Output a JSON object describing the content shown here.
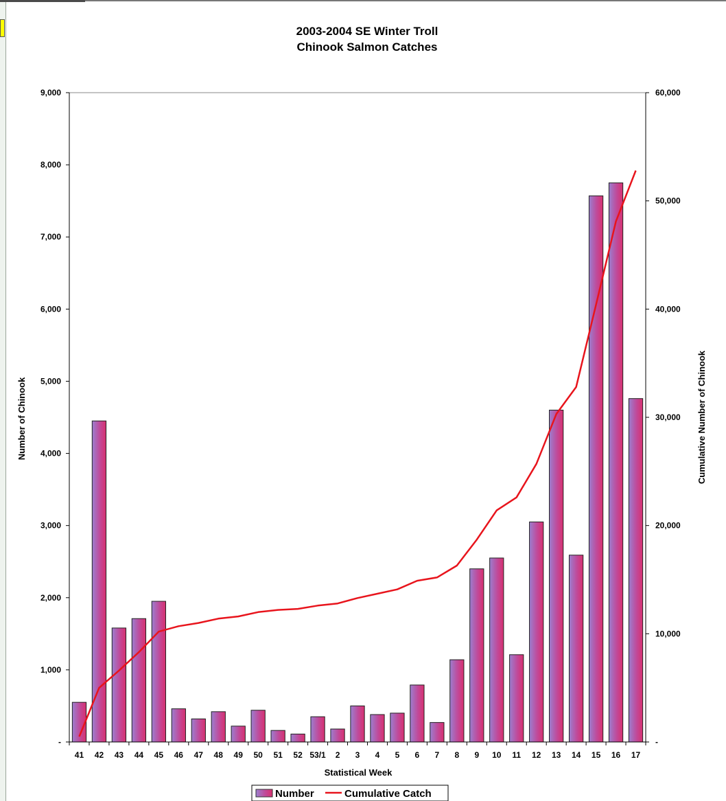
{
  "chart_data": {
    "type": "bar",
    "title": "2003-2004 SE Winter Troll",
    "subtitle": "Chinook Salmon Catches",
    "xlabel": "Statistical Week",
    "ylabel": "Number of Chinook",
    "y2label": "Cumulative Number of Chinook",
    "ylim": [
      0,
      9000
    ],
    "y2lim": [
      0,
      60000
    ],
    "y_ticks": [
      "-",
      "1,000",
      "2,000",
      "3,000",
      "4,000",
      "5,000",
      "6,000",
      "7,000",
      "8,000",
      "9,000"
    ],
    "y2_ticks": [
      "-",
      "10,000",
      "20,000",
      "30,000",
      "40,000",
      "50,000",
      "60,000"
    ],
    "categories": [
      "41",
      "42",
      "43",
      "44",
      "45",
      "46",
      "47",
      "48",
      "49",
      "50",
      "51",
      "52",
      "53/1",
      "2",
      "3",
      "4",
      "5",
      "6",
      "7",
      "8",
      "9",
      "10",
      "11",
      "12",
      "13",
      "14",
      "15",
      "16",
      "17"
    ],
    "series": [
      {
        "name": "Number",
        "kind": "bar",
        "color": "#b05aa8",
        "values": [
          550,
          4450,
          1580,
          1710,
          1950,
          460,
          320,
          420,
          220,
          440,
          160,
          110,
          350,
          180,
          500,
          380,
          400,
          790,
          270,
          1140,
          2400,
          2550,
          1210,
          3050,
          4600,
          2590,
          7570,
          7750,
          4760
        ]
      },
      {
        "name": "Cumulative Catch",
        "kind": "line",
        "color": "#e8141c",
        "values": [
          500,
          5000,
          6600,
          8300,
          10200,
          10700,
          11000,
          11400,
          11600,
          12000,
          12200,
          12300,
          12600,
          12800,
          13300,
          13700,
          14100,
          14900,
          15200,
          16300,
          18700,
          21400,
          22600,
          25700,
          30300,
          32800,
          40400,
          48100,
          52800
        ]
      }
    ],
    "legend": {
      "position": "bottom-center",
      "items": [
        {
          "label": "Number",
          "color": "#b05aa8"
        },
        {
          "label": "Cumulative Catch",
          "color": "#e8141c"
        }
      ]
    }
  }
}
